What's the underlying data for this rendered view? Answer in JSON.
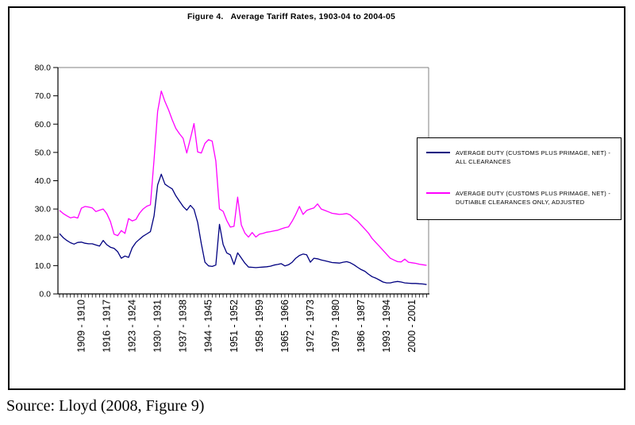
{
  "figure": {
    "title": "Figure 4.   Average Tariff Rates, 1903-04 to 2004-05",
    "source_note": "Source: Lloyd (2008, Figure 9)"
  },
  "chart_data": {
    "type": "line",
    "title": "Figure 4.   Average Tariff Rates, 1903-04 to 2004-05",
    "xlabel": "",
    "ylabel": "",
    "ylim": [
      0,
      80
    ],
    "grid": false,
    "legend_position": "right-overlay-box",
    "axis_color": "#000000",
    "frame_color": "#808080",
    "y_ticks": [
      0,
      10,
      20,
      30,
      40,
      50,
      60,
      70,
      80
    ],
    "y_tick_labels": [
      "0.0",
      "10.0",
      "20.0",
      "30.0",
      "40.0",
      "50.0",
      "60.0",
      "70.0",
      "80.0"
    ],
    "x_start_year": 1903,
    "x_end_year": 2004,
    "x_tick_indices": [
      6,
      13,
      20,
      27,
      34,
      41,
      48,
      55,
      62,
      69,
      76,
      83,
      90,
      97
    ],
    "x_tick_labels": [
      "1909 - 1910",
      "1916 - 1917",
      "1923 - 1924",
      "1930 - 1931",
      "1937 - 1938",
      "1944 - 1945",
      "1951 - 1952",
      "1958 - 1959",
      "1965 - 1966",
      "1972 - 1973",
      "1979 - 1980",
      "1986 - 1987",
      "1993 - 1994",
      "2000 - 2001"
    ],
    "series": [
      {
        "name": "AVERAGE DUTY (CUSTOMS PLUS PRIMAGE, NET) -\nALL CLEARANCES",
        "color": "#000080",
        "values": [
          21.3,
          19.9,
          18.9,
          18.1,
          17.6,
          18.2,
          18.3,
          17.9,
          17.7,
          17.7,
          17.3,
          16.9,
          18.9,
          17.4,
          16.5,
          16.1,
          14.9,
          12.6,
          13.4,
          12.9,
          16.3,
          18.2,
          19.3,
          20.4,
          21.2,
          22.0,
          27.6,
          38.5,
          42.3,
          38.8,
          37.9,
          37.1,
          34.7,
          32.8,
          30.9,
          29.6,
          31.3,
          29.9,
          25.3,
          17.8,
          11.2,
          9.9,
          9.7,
          10.2,
          24.6,
          17.5,
          14.5,
          13.8,
          10.4,
          14.5,
          12.7,
          10.9,
          9.5,
          9.4,
          9.3,
          9.4,
          9.5,
          9.6,
          9.8,
          10.2,
          10.4,
          10.7,
          9.9,
          10.3,
          11.2,
          12.6,
          13.6,
          14.1,
          13.8,
          11.2,
          12.6,
          12.4,
          12.0,
          11.7,
          11.4,
          11.1,
          11.0,
          10.9,
          11.2,
          11.4,
          11.0,
          10.3,
          9.4,
          8.6,
          8.0,
          7.0,
          6.1,
          5.6,
          4.9,
          4.2,
          3.9,
          3.9,
          4.2,
          4.4,
          4.2,
          3.9,
          3.8,
          3.7,
          3.7,
          3.6,
          3.5,
          3.3
        ]
      },
      {
        "name": "AVERAGE DUTY (CUSTOMS PLUS PRIMAGE, NET) -\nDUTIABLE CLEARANCES ONLY, ADJUSTED",
        "color": "#FF00FF",
        "values": [
          29.5,
          28.4,
          27.6,
          26.9,
          27.2,
          26.8,
          30.3,
          30.9,
          30.7,
          30.4,
          29.1,
          29.6,
          30.0,
          28.4,
          25.6,
          21.1,
          20.6,
          22.4,
          21.4,
          26.6,
          25.8,
          26.3,
          28.5,
          30.0,
          31.0,
          31.5,
          47.5,
          64.5,
          71.7,
          68.0,
          65.0,
          61.5,
          58.5,
          56.6,
          55.0,
          49.8,
          54.9,
          60.2,
          50.2,
          49.8,
          53.2,
          54.5,
          54.0,
          47.0,
          30.0,
          29.2,
          26.0,
          23.6,
          23.9,
          34.2,
          24.4,
          21.5,
          20.1,
          21.7,
          20.1,
          21.1,
          21.4,
          21.8,
          22.0,
          22.3,
          22.5,
          23.0,
          23.4,
          23.7,
          25.7,
          28.1,
          30.9,
          28.1,
          29.5,
          30.0,
          30.4,
          31.8,
          30.0,
          29.5,
          29.0,
          28.5,
          28.3,
          28.1,
          28.2,
          28.4,
          27.9,
          26.7,
          25.7,
          24.3,
          22.9,
          21.5,
          19.6,
          18.2,
          16.8,
          15.4,
          14.0,
          12.6,
          12.0,
          11.4,
          11.3,
          12.3,
          11.2,
          11.0,
          10.8,
          10.5,
          10.3,
          10.1
        ]
      }
    ]
  }
}
